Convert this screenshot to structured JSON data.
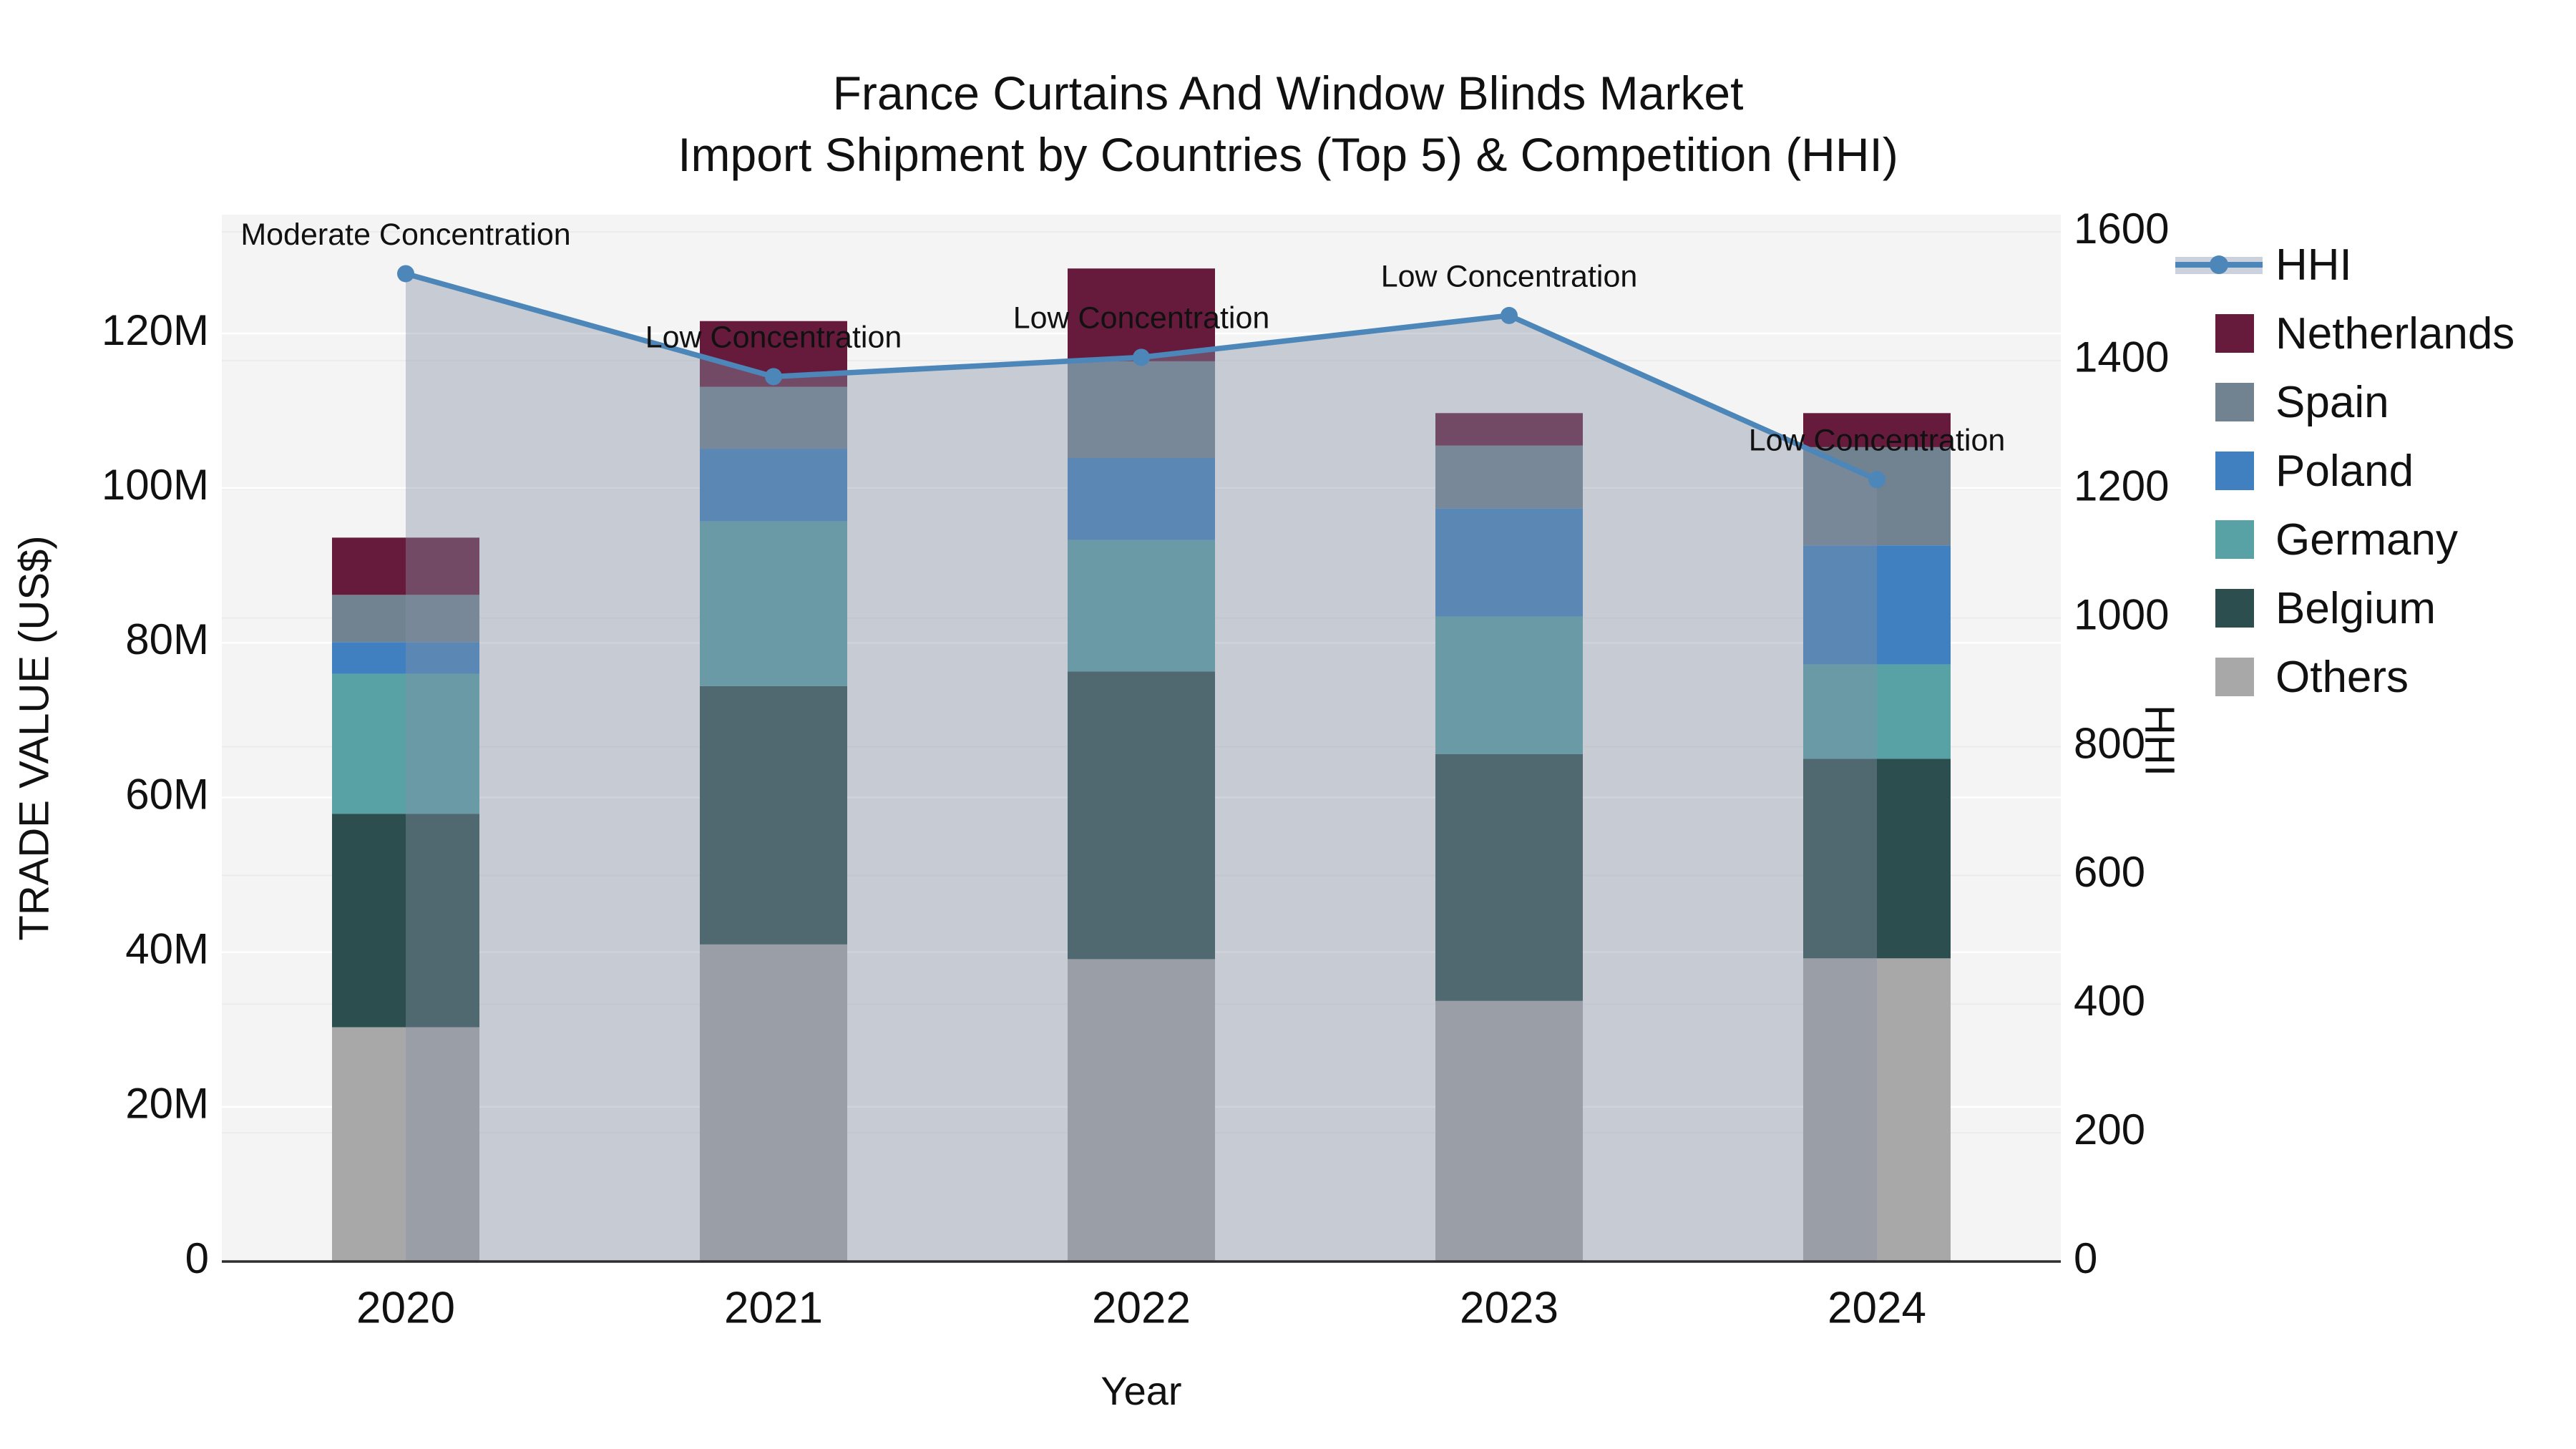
{
  "title": {
    "line1": "France Curtains And Window Blinds Market",
    "line2": "Import Shipment by Countries (Top 5) & Competition (HHI)"
  },
  "axes": {
    "x_title": "Year",
    "y_left_title": "TRADE VALUE (US$)",
    "y_right_title": "HHI",
    "y_left_ticks": [
      "0",
      "20M",
      "40M",
      "60M",
      "80M",
      "100M",
      "120M"
    ],
    "y_right_ticks": [
      "0",
      "200",
      "400",
      "600",
      "800",
      "1000",
      "1200",
      "1400",
      "1600"
    ]
  },
  "legend": {
    "items": [
      {
        "label": "HHI",
        "type": "line-sample"
      },
      {
        "label": "Netherlands",
        "type": "swatch",
        "color": "#661b3c"
      },
      {
        "label": "Spain",
        "type": "swatch",
        "color": "#718291"
      },
      {
        "label": "Poland",
        "type": "swatch",
        "color": "#4080c0"
      },
      {
        "label": "Germany",
        "type": "swatch",
        "color": "#58a1a5"
      },
      {
        "label": "Belgium",
        "type": "swatch",
        "color": "#2d4e4e"
      },
      {
        "label": "Others",
        "type": "swatch",
        "color": "#a8a8a8"
      }
    ]
  },
  "chart_data": {
    "type": "combo",
    "bar_mode": "stacked",
    "x": [
      "2020",
      "2021",
      "2022",
      "2023",
      "2024"
    ],
    "bar_unit": "M US$ (trade value)",
    "series": [
      {
        "name": "Others",
        "color": "#a8a8a8",
        "values": [
          30.3,
          41.0,
          39.1,
          33.7,
          39.2
        ]
      },
      {
        "name": "Belgium",
        "color": "#2d4e4e",
        "values": [
          27.6,
          33.4,
          37.2,
          31.9,
          25.8
        ]
      },
      {
        "name": "Germany",
        "color": "#58a1a5",
        "values": [
          18.1,
          21.3,
          17.0,
          17.8,
          12.2
        ]
      },
      {
        "name": "Poland",
        "color": "#4080c0",
        "values": [
          4.1,
          9.4,
          10.6,
          14.0,
          15.4
        ]
      },
      {
        "name": "Spain",
        "color": "#718291",
        "values": [
          6.1,
          8.0,
          12.5,
          8.1,
          12.7
        ]
      },
      {
        "name": "Netherlands",
        "color": "#661b3c",
        "values": [
          7.4,
          8.5,
          12.0,
          4.2,
          4.4
        ]
      }
    ],
    "bar_totals": [
      93.6,
      121.6,
      128.4,
      109.7,
      109.7
    ],
    "line_series": {
      "name": "HHI",
      "color": "#4d86b8",
      "fill_color": "rgba(132,144,166,0.40)",
      "values": [
        1535,
        1375,
        1405,
        1470,
        1215
      ]
    },
    "annotations": [
      {
        "x": "2020",
        "text": "Moderate Concentration"
      },
      {
        "x": "2021",
        "text": "Low Concentration"
      },
      {
        "x": "2022",
        "text": "Low Concentration"
      },
      {
        "x": "2023",
        "text": "Low Concentration"
      },
      {
        "x": "2024",
        "text": "Low Concentration"
      }
    ],
    "y_left_range": [
      0,
      135
    ],
    "y_right_range": [
      0,
      1627
    ],
    "grid": true,
    "legend_position": "right",
    "plot_background": "#f4f4f4"
  }
}
